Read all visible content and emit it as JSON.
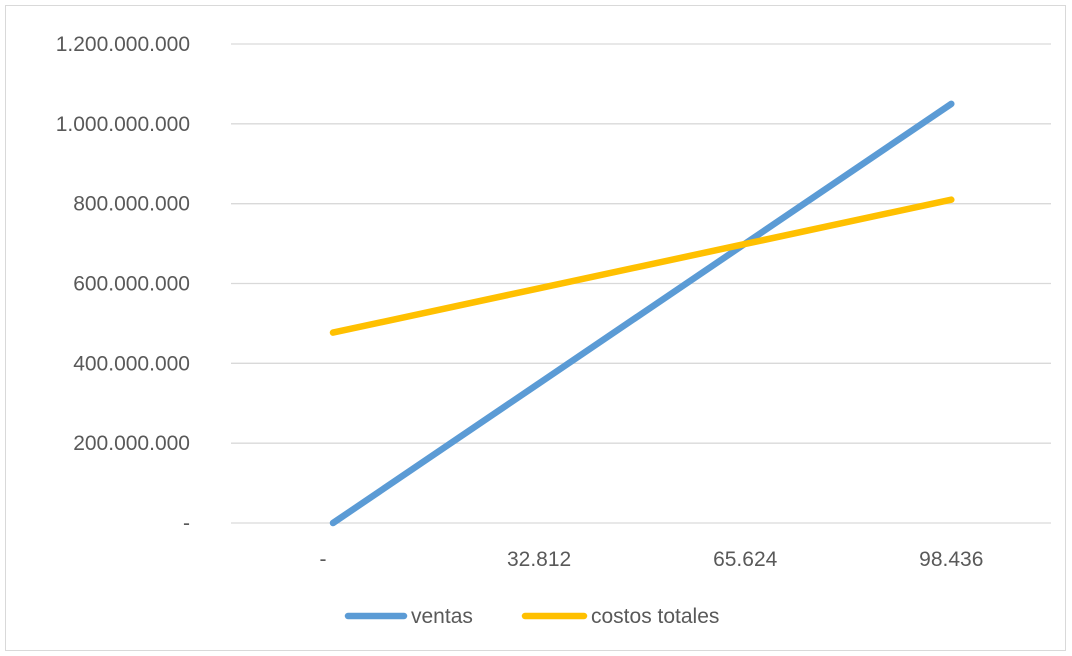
{
  "chart_data": {
    "type": "line",
    "title": "",
    "xlabel": "",
    "ylabel": "",
    "categories": [
      "-",
      "32.812",
      "65.624",
      "98.436"
    ],
    "x": [
      0,
      32812,
      65624,
      98436
    ],
    "series": [
      {
        "name": "ventas",
        "color": "#5b9bd5",
        "values": [
          0,
          350000000,
          700000000,
          1050000000
        ]
      },
      {
        "name": "costos totales",
        "color": "#ffc000",
        "values": [
          477000000,
          588000000,
          699000000,
          810000000
        ]
      }
    ],
    "y_ticks": [
      {
        "value": 0,
        "label": "-"
      },
      {
        "value": 200000000,
        "label": "200.000.000"
      },
      {
        "value": 400000000,
        "label": "400.000.000"
      },
      {
        "value": 600000000,
        "label": "600.000.000"
      },
      {
        "value": 800000000,
        "label": "800.000.000"
      },
      {
        "value": 1000000000,
        "label": "1.000.000.000"
      },
      {
        "value": 1200000000,
        "label": "1.200.000.000"
      }
    ],
    "ylim": [
      0,
      1200000000
    ],
    "grid": true,
    "gridline_color": "#d9d9d9",
    "legend_position": "bottom"
  }
}
